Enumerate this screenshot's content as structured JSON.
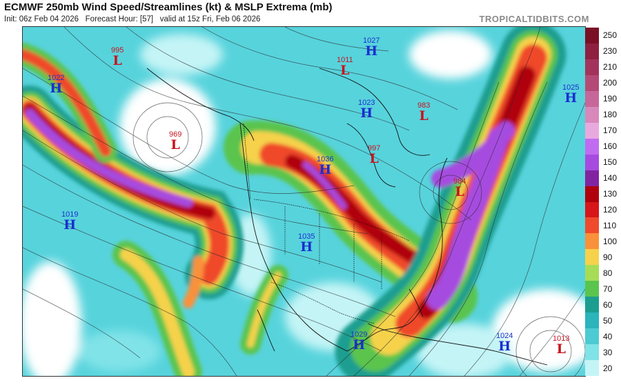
{
  "header": {
    "title": "ECMWF 250mb Wind Speed/Streamlines (kt) & MSLP Extrema (mb)",
    "init": "Init: 06z Feb 04 2026",
    "forecast_hour": "Forecast Hour: [57]",
    "valid": "valid at 15z Fri, Feb 06 2026",
    "brand": "TROPICALTIDBITS.COM"
  },
  "legend": {
    "labels": [
      "250",
      "230",
      "210",
      "200",
      "190",
      "180",
      "170",
      "160",
      "150",
      "140",
      "130",
      "120",
      "110",
      "100",
      "90",
      "80",
      "70",
      "60",
      "50",
      "40",
      "30",
      "20"
    ],
    "colors": [
      "#7a1026",
      "#8e2040",
      "#a2345c",
      "#b44a76",
      "#c6679a",
      "#d888bb",
      "#e8aade",
      "#c06cf0",
      "#a64be0",
      "#8224a0",
      "#b0000c",
      "#d6161a",
      "#ef4a2c",
      "#f9913a",
      "#f6d24b",
      "#a7dc56",
      "#5ac44e",
      "#1b9e90",
      "#2ab4bc",
      "#4ccbd2",
      "#80e3e8",
      "#c4f4f6"
    ]
  },
  "pressure_centers": [
    {
      "type": "low",
      "symbol": "L",
      "value": "995"
    },
    {
      "type": "high",
      "symbol": "H",
      "value": "1022"
    },
    {
      "type": "low",
      "symbol": "L",
      "value": "969"
    },
    {
      "type": "high",
      "symbol": "H",
      "value": "1019"
    },
    {
      "type": "high",
      "symbol": "H",
      "value": "1027"
    },
    {
      "type": "low",
      "symbol": "L",
      "value": "1011"
    },
    {
      "type": "high",
      "symbol": "H",
      "value": "1023"
    },
    {
      "type": "low",
      "symbol": "L",
      "value": "983"
    },
    {
      "type": "high",
      "symbol": "H",
      "value": "1025"
    },
    {
      "type": "low",
      "symbol": "L",
      "value": "997"
    },
    {
      "type": "high",
      "symbol": "H",
      "value": "1036"
    },
    {
      "type": "low",
      "symbol": "L",
      "value": "984"
    },
    {
      "type": "high",
      "symbol": "H",
      "value": "1035"
    },
    {
      "type": "high",
      "symbol": "H",
      "value": "1029"
    },
    {
      "type": "high",
      "symbol": "H",
      "value": "1024"
    },
    {
      "type": "low",
      "symbol": "L",
      "value": "1013"
    }
  ]
}
